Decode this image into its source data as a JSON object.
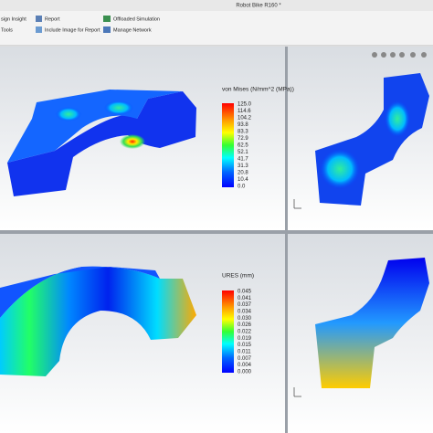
{
  "window": {
    "title": "Robot Bike R160 *"
  },
  "ribbon": {
    "left": [
      "sign Insight",
      "Tools"
    ],
    "middle": [
      "Report",
      "Include Image for Report"
    ],
    "right": [
      "Offloaded Simulation",
      "Manage Network"
    ]
  },
  "stress_plot": {
    "legend_title": "von Mises (N/mm^2 (MPa))",
    "legend_values": [
      "125.0",
      "114.6",
      "104.2",
      "93.8",
      "83.3",
      "72.9",
      "62.5",
      "52.1",
      "41.7",
      "31.3",
      "20.8",
      "10.4",
      "0.0"
    ]
  },
  "displacement_plot": {
    "legend_title": "URES (mm)",
    "legend_values": [
      "0.045",
      "0.041",
      "0.037",
      "0.034",
      "0.030",
      "0.026",
      "0.022",
      "0.019",
      "0.015",
      "0.011",
      "0.007",
      "0.004",
      "0.000"
    ]
  }
}
